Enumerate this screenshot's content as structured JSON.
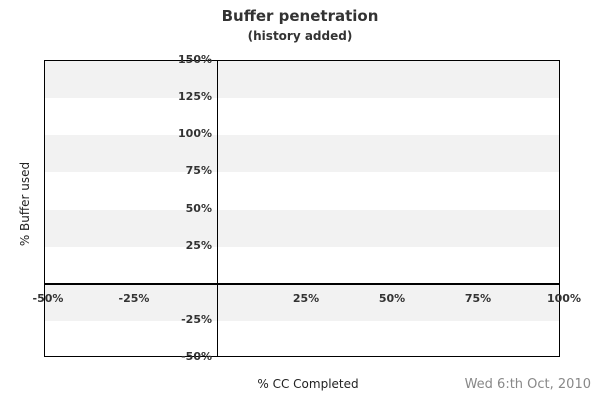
{
  "chart_data": {
    "type": "scatter",
    "title": "Buffer penetration",
    "subtitle": "(history added)",
    "xlabel": "% CC Completed",
    "ylabel": "% Buffer used",
    "footer_date": "Wed 6:th Oct, 2010",
    "xlim": [
      -50,
      100
    ],
    "ylim": [
      -50,
      150
    ],
    "x_tick_values": [
      -50,
      -25,
      25,
      50,
      75,
      100
    ],
    "x_tick_labels": [
      "-50%",
      "-25%",
      "25%",
      "50%",
      "75%",
      "100%"
    ],
    "y_tick_values": [
      150,
      125,
      100,
      75,
      50,
      25,
      -25,
      -50
    ],
    "y_tick_labels": [
      "150%",
      "125%",
      "100%",
      "75%",
      "50%",
      "25%",
      "-25%",
      "-50%"
    ],
    "band_step_percent": 25,
    "grid": "alternating-horizontal-bands",
    "legend": null,
    "series": [],
    "colors": {
      "band": "#f2f2f2",
      "plot_background": "#ffffff",
      "axis_line": "#000000",
      "tick_text": "#333333",
      "title_text": "#333333",
      "date_text": "#888888"
    }
  }
}
